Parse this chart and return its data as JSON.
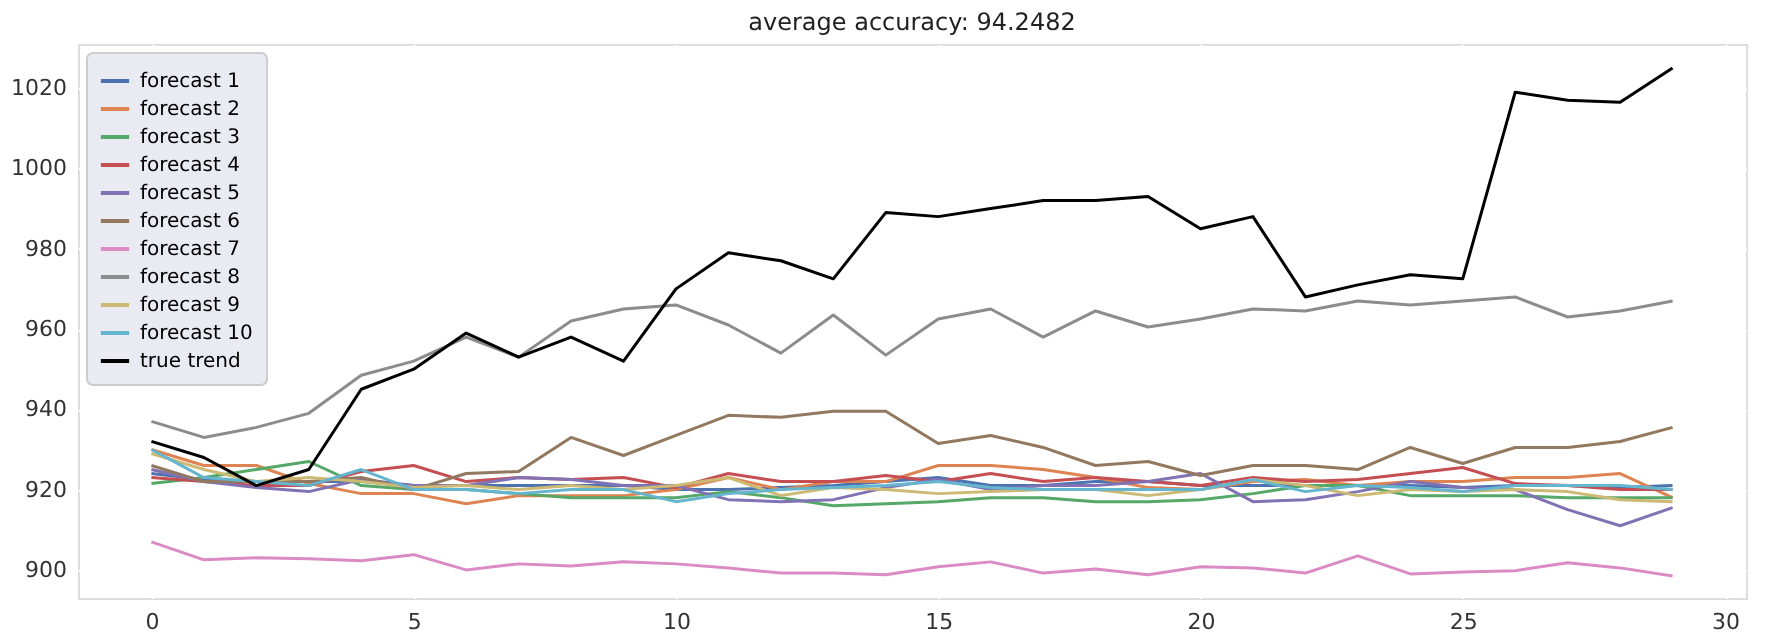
{
  "chart_data": {
    "type": "line",
    "title": "average accuracy: 94.2482",
    "x": [
      0,
      1,
      2,
      3,
      4,
      5,
      6,
      7,
      8,
      9,
      10,
      11,
      12,
      13,
      14,
      15,
      16,
      17,
      18,
      19,
      20,
      21,
      22,
      23,
      24,
      25,
      26,
      27,
      28,
      29
    ],
    "series": [
      {
        "name": "forecast 1",
        "color": "#4c72b0",
        "values": [
          924,
          922.5,
          922,
          922,
          922,
          921,
          921,
          921,
          921,
          921,
          920,
          920,
          920.5,
          921,
          922,
          923,
          921,
          921,
          922,
          922,
          921,
          921,
          921,
          921,
          921,
          920.5,
          921,
          921,
          920.5,
          921
        ]
      },
      {
        "name": "forecast 2",
        "color": "#dd8452",
        "values": [
          930,
          926,
          926,
          921.5,
          919,
          919,
          916.5,
          918.5,
          918.5,
          918.5,
          920,
          923,
          920,
          922,
          922,
          926,
          926,
          925,
          923,
          920.5,
          920,
          922,
          922.5,
          921,
          922,
          922,
          923,
          923,
          924,
          918
        ]
      },
      {
        "name": "forecast 3",
        "color": "#55a868",
        "values": [
          921.5,
          923,
          925,
          927,
          921,
          920,
          920,
          919,
          918,
          918,
          918,
          919.5,
          918,
          916,
          916.5,
          917,
          918,
          918,
          917,
          917,
          917.5,
          919,
          921,
          921,
          918.5,
          918.5,
          918.5,
          918,
          918,
          918
        ]
      },
      {
        "name": "forecast 4",
        "color": "#c44e52",
        "values": [
          923,
          922,
          921,
          921,
          924.5,
          926,
          922,
          923,
          922.5,
          923,
          920.5,
          924,
          922,
          922,
          923.5,
          922,
          924,
          922,
          923,
          922,
          921,
          923,
          922,
          922.5,
          924,
          925.5,
          921.5,
          921,
          920,
          920
        ]
      },
      {
        "name": "forecast 5",
        "color": "#8172b3",
        "values": [
          925,
          922,
          920.5,
          919.5,
          922.5,
          921,
          921,
          923,
          922.5,
          921,
          921,
          917.5,
          917,
          917.5,
          920.5,
          922.5,
          920,
          921,
          921,
          922,
          924,
          917,
          917.5,
          919.5,
          922,
          920.5,
          920,
          915,
          911,
          915.5
        ]
      },
      {
        "name": "forecast 6",
        "color": "#937860",
        "values": [
          926,
          922,
          922,
          922,
          923,
          920,
          924,
          924.5,
          933,
          928.5,
          933.5,
          938.5,
          938,
          939.5,
          939.5,
          931.5,
          933.5,
          930.5,
          926,
          927,
          923.5,
          926,
          926,
          925,
          930.5,
          926.5,
          930.5,
          930.5,
          932,
          935.5
        ]
      },
      {
        "name": "forecast 7",
        "color": "#da8bc3",
        "values": [
          907,
          902.5,
          903,
          902.8,
          902.3,
          903.8,
          900,
          901.5,
          901,
          902,
          901.5,
          900.5,
          899.2,
          899.2,
          898.8,
          900.8,
          902,
          899.2,
          900.2,
          898.8,
          900.8,
          900.5,
          899.2,
          903.5,
          899,
          899.5,
          899.8,
          901.8,
          900.5,
          898.5
        ]
      },
      {
        "name": "forecast 8",
        "color": "#8c8c8c",
        "values": [
          937,
          933,
          935.5,
          939,
          948.5,
          952,
          958,
          953,
          962,
          965,
          966,
          961,
          954,
          963.5,
          953.5,
          962.5,
          965,
          958,
          964.5,
          960.5,
          962.5,
          965,
          964.5,
          967,
          966,
          967,
          968,
          963,
          964.5,
          967
        ]
      },
      {
        "name": "forecast 9",
        "color": "#ccb974",
        "values": [
          929,
          925,
          922,
          923,
          922,
          920.5,
          921,
          920,
          921,
          920,
          921,
          923,
          918.5,
          920.5,
          920,
          919,
          919.5,
          920,
          920,
          918.5,
          920,
          922.5,
          921,
          918.5,
          920,
          919.5,
          920,
          919.5,
          917.5,
          917
        ]
      },
      {
        "name": "forecast 10",
        "color": "#64b5cd",
        "values": [
          930,
          923,
          922,
          921,
          925,
          920,
          920,
          919,
          920,
          920,
          917,
          919,
          920,
          920.5,
          921,
          922,
          920.5,
          920,
          920,
          920,
          920,
          922.5,
          919.5,
          921,
          920.5,
          919.5,
          921,
          921,
          921,
          920
        ]
      },
      {
        "name": "true trend",
        "color": "#000000",
        "values": [
          932,
          928,
          921,
          925,
          945,
          950,
          959,
          953,
          958,
          952,
          970,
          979,
          977,
          972.5,
          989,
          988,
          990,
          992,
          992,
          993,
          985,
          988,
          968,
          971,
          973.5,
          972.5,
          1019,
          1017,
          1016.5,
          1025
        ]
      }
    ],
    "xlim": [
      -1.4,
      30.4
    ],
    "xticks": [
      0,
      5,
      10,
      15,
      20,
      25,
      30
    ],
    "ylim": [
      893,
      1031
    ],
    "yticks": [
      900,
      920,
      940,
      960,
      980,
      1000,
      1020
    ],
    "grid": true,
    "legend": "top left",
    "line_style": "solid",
    "marker": "none"
  }
}
